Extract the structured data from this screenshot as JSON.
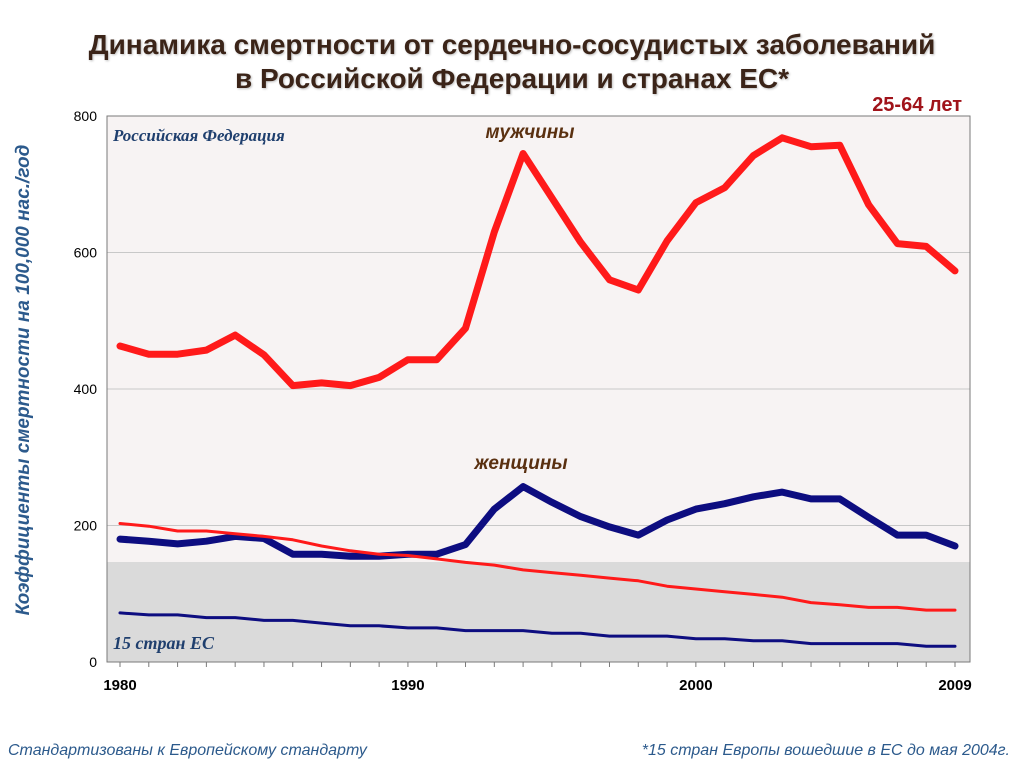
{
  "title_line1": "Динамика смертности от сердечно-сосудистых заболеваний",
  "title_line2": "в Российской Федерации и странах ЕС*",
  "age_label": "25-64 лет",
  "footnote_left": "Стандартизованы к Европейскому стандарту",
  "footnote_right": "*15 стран Европы вошедшие в ЕС до мая 2004г.",
  "colors": {
    "russia": "#ff1a1a",
    "eu": "#0d0d80",
    "upper_bg": "#f7f3f3",
    "lower_bg": "#dadada"
  },
  "chart_data": {
    "type": "line",
    "ylabel": "Коэффициенты смертности на 100,000 нас./год",
    "ylim": [
      0,
      800
    ],
    "yticks": [
      "0",
      "200",
      "400",
      "600",
      "800"
    ],
    "xlim": [
      1980,
      2009
    ],
    "xticks": [
      "1980",
      "1990",
      "2000",
      "2009"
    ],
    "region_labels": {
      "russia": "Российская Федерация",
      "eu": "15 стран ЕС"
    },
    "series_labels": {
      "men": "мужчины",
      "women": "женщины"
    },
    "x": [
      1980,
      1981,
      1982,
      1983,
      1984,
      1985,
      1986,
      1987,
      1988,
      1989,
      1990,
      1991,
      1992,
      1993,
      1994,
      1995,
      1996,
      1997,
      1998,
      1999,
      2000,
      2001,
      2002,
      2003,
      2004,
      2005,
      2006,
      2007,
      2008,
      2009
    ],
    "series": [
      {
        "key": "ru_men",
        "group": "russia",
        "values": [
          463,
          451,
          451,
          457,
          479,
          450,
          405,
          409,
          405,
          417,
          443,
          443,
          489,
          630,
          745,
          680,
          615,
          560,
          545,
          617,
          673,
          695,
          742,
          768,
          755,
          757,
          670,
          613,
          609,
          573
        ]
      },
      {
        "key": "ru_women",
        "group": "eu",
        "values": [
          180,
          177,
          173,
          177,
          184,
          181,
          158,
          158,
          155,
          155,
          158,
          158,
          172,
          224,
          257,
          234,
          213,
          198,
          186,
          208,
          224,
          232,
          242,
          249,
          239,
          239,
          212,
          186,
          186,
          170
        ]
      },
      {
        "key": "eu_men",
        "group": "russia",
        "values": [
          203,
          199,
          192,
          192,
          188,
          184,
          179,
          170,
          163,
          158,
          156,
          151,
          146,
          142,
          135,
          131,
          127,
          123,
          119,
          111,
          107,
          103,
          99,
          95,
          87,
          84,
          80,
          80,
          76,
          76
        ]
      },
      {
        "key": "eu_women",
        "group": "eu",
        "values": [
          72,
          69,
          69,
          65,
          65,
          61,
          61,
          57,
          53,
          53,
          50,
          50,
          46,
          46,
          46,
          42,
          42,
          38,
          38,
          38,
          34,
          34,
          31,
          31,
          27,
          27,
          27,
          27,
          23,
          23
        ]
      }
    ]
  }
}
